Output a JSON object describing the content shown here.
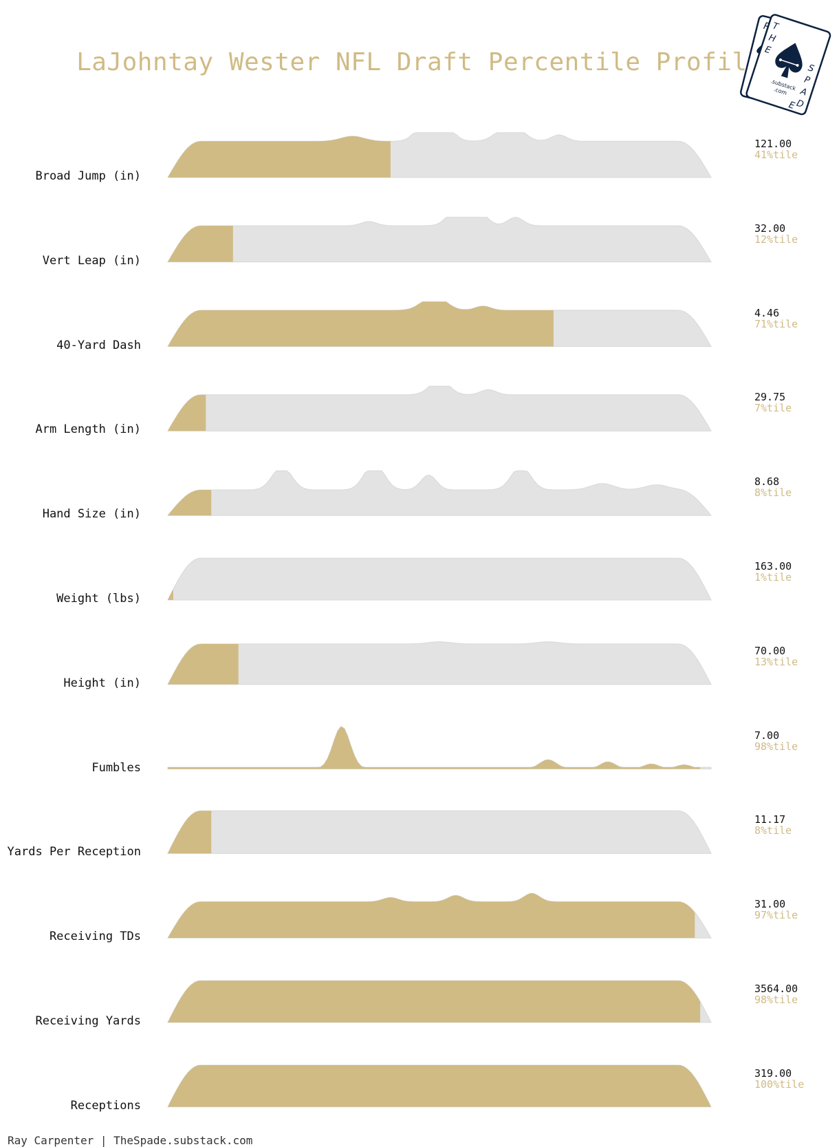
{
  "title": "LaJohntay Wester NFL Draft Percentile Profile",
  "footer": "Ray Carpenter | TheSpade.substack.com",
  "colors": {
    "highlight": "#d0bb85",
    "background_density": "#e3e3e3",
    "title": "#d0bb85",
    "logo": "#0d2240"
  },
  "logo": {
    "left_card_text": "RC",
    "right_card_text": "THE SPADE",
    "substack": ".substack",
    "com": ".com"
  },
  "chart_data": {
    "type": "ridgeline",
    "title": "LaJohntay Wester NFL Draft Percentile Profile",
    "rows": [
      {
        "label": "Broad Jump (in)",
        "value": "121.00",
        "percentile_label": "41%tile",
        "percentile": 41
      },
      {
        "label": "Vert Leap (in)",
        "value": "32.00",
        "percentile_label": "12%tile",
        "percentile": 12
      },
      {
        "label": "40-Yard Dash",
        "value": "4.46",
        "percentile_label": "71%tile",
        "percentile": 71
      },
      {
        "label": "Arm Length (in)",
        "value": "29.75",
        "percentile_label": "7%tile",
        "percentile": 7
      },
      {
        "label": "Hand Size (in)",
        "value": "8.68",
        "percentile_label": "8%tile",
        "percentile": 8
      },
      {
        "label": "Weight (lbs)",
        "value": "163.00",
        "percentile_label": "1%tile",
        "percentile": 1
      },
      {
        "label": "Height (in)",
        "value": "70.00",
        "percentile_label": "13%tile",
        "percentile": 13
      },
      {
        "label": "Fumbles",
        "value": "7.00",
        "percentile_label": "98%tile",
        "percentile": 98
      },
      {
        "label": "Yards Per Reception",
        "value": "11.17",
        "percentile_label": "8%tile",
        "percentile": 8
      },
      {
        "label": "Receiving TDs",
        "value": "31.00",
        "percentile_label": "97%tile",
        "percentile": 97
      },
      {
        "label": "Receiving Yards",
        "value": "3564.00",
        "percentile_label": "98%tile",
        "percentile": 98
      },
      {
        "label": "Receptions",
        "value": "319.00",
        "percentile_label": "100%tile",
        "percentile": 100
      }
    ]
  }
}
